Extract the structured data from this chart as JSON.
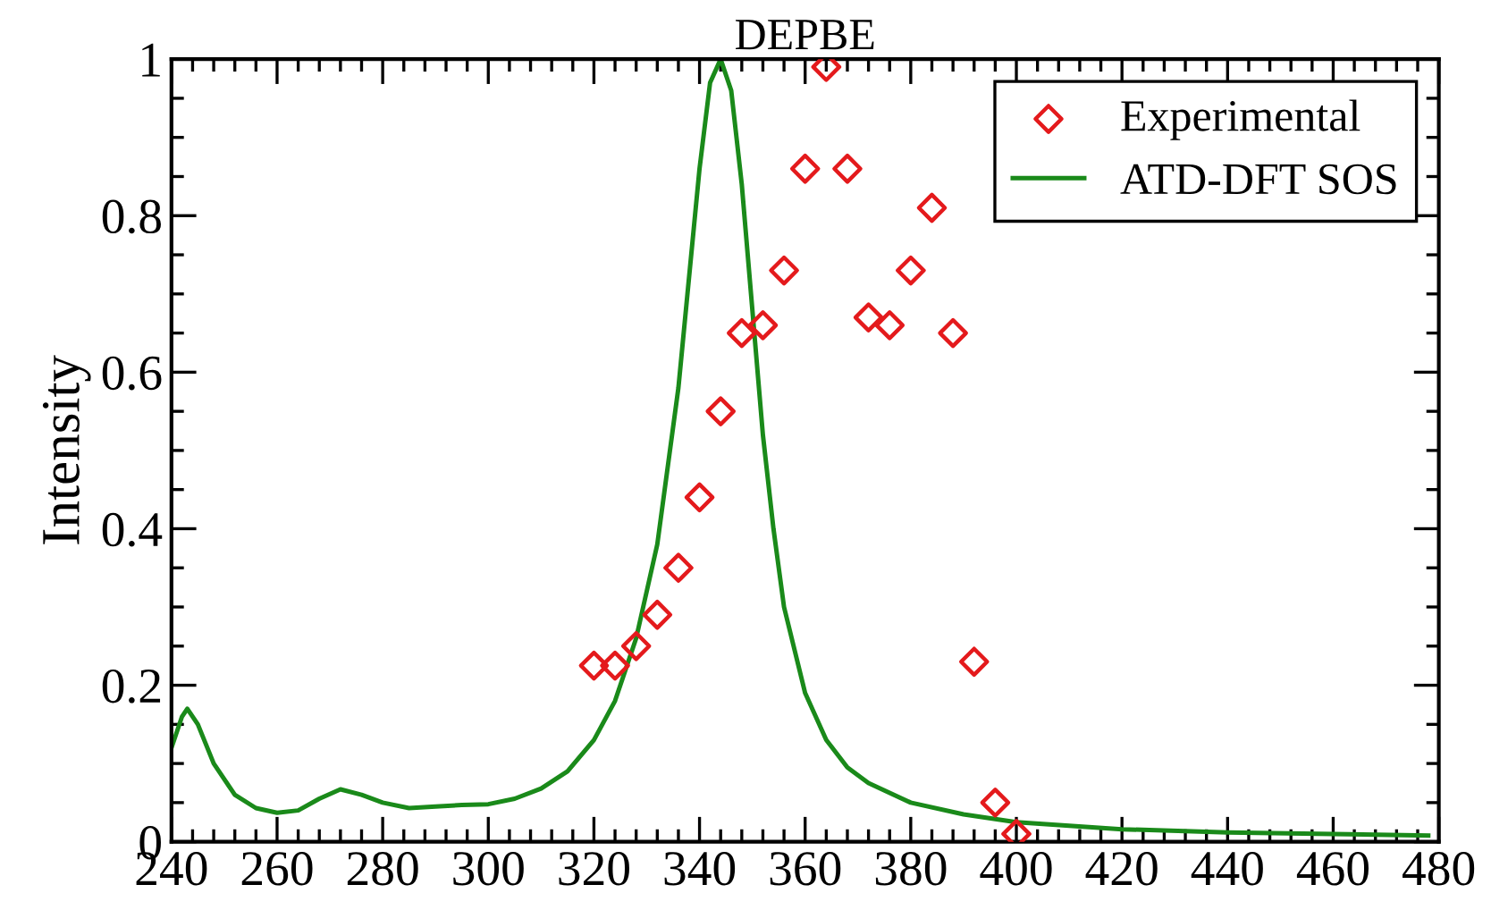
{
  "chart_data": {
    "type": "scatter",
    "title": "DEPBE",
    "ylabel": "Intensity",
    "xlim": [
      240,
      480
    ],
    "xticks": [
      240,
      260,
      280,
      300,
      320,
      340,
      360,
      380,
      400,
      420,
      440,
      460,
      480
    ],
    "ylim": [
      0,
      1
    ],
    "yticks": [
      0,
      0.2,
      0.4,
      0.6,
      0.8,
      1
    ],
    "grid": false,
    "legend": "top right",
    "series": [
      {
        "name": "Experimental",
        "marker": "diamond",
        "color": "#e41a1c",
        "x": [
          320,
          324,
          328,
          332,
          336,
          340,
          344,
          348,
          352,
          356,
          360,
          364,
          368,
          372,
          376,
          380,
          384,
          388,
          392,
          396,
          400
        ],
        "values": [
          0.225,
          0.225,
          0.25,
          0.29,
          0.35,
          0.44,
          0.55,
          0.65,
          0.66,
          0.73,
          0.86,
          0.99,
          0.86,
          0.67,
          0.66,
          0.73,
          0.81,
          0.65,
          0.23,
          0.05,
          0.01
        ]
      },
      {
        "name": "ATD-DFT SOS",
        "type": "line",
        "marker": "none",
        "line_style": "solid",
        "color": "#1a8a1a",
        "x": [
          240,
          242,
          243,
          245,
          248,
          252,
          256,
          260,
          264,
          268,
          272,
          276,
          280,
          285,
          290,
          295,
          300,
          305,
          310,
          315,
          320,
          324,
          328,
          332,
          336,
          338,
          340,
          342,
          344,
          346,
          348,
          350,
          352,
          354,
          356,
          360,
          364,
          368,
          372,
          380,
          390,
          400,
          420,
          440,
          460,
          478
        ],
        "values": [
          0.12,
          0.16,
          0.17,
          0.15,
          0.1,
          0.06,
          0.043,
          0.037,
          0.04,
          0.055,
          0.067,
          0.06,
          0.05,
          0.043,
          0.045,
          0.047,
          0.048,
          0.055,
          0.068,
          0.09,
          0.13,
          0.18,
          0.26,
          0.38,
          0.58,
          0.72,
          0.86,
          0.97,
          1.0,
          0.96,
          0.84,
          0.68,
          0.52,
          0.4,
          0.3,
          0.19,
          0.13,
          0.095,
          0.075,
          0.05,
          0.035,
          0.025,
          0.016,
          0.012,
          0.01,
          0.008
        ]
      }
    ]
  }
}
